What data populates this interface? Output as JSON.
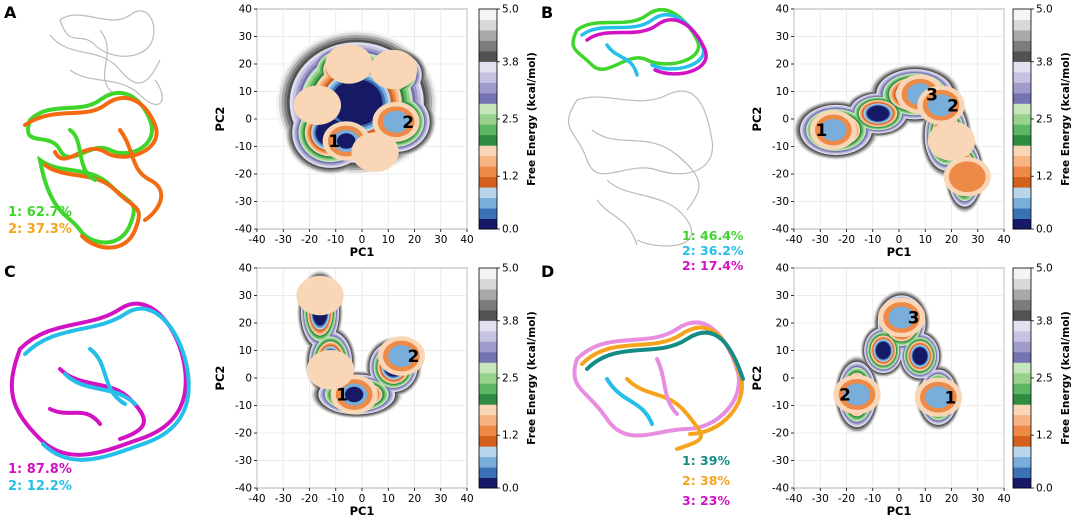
{
  "colors": {
    "colorbar": [
      "#161a66",
      "#3a72b5",
      "#79aedb",
      "#b7d6ec",
      "#d4601d",
      "#ee8a47",
      "#f7b381",
      "#f9d6b6",
      "#2f8b41",
      "#5cb664",
      "#98d28d",
      "#c5e7bb",
      "#7573b2",
      "#9f9ccc",
      "#c5c2e2",
      "#e1e0f0",
      "#525252",
      "#7c7c7c",
      "#a9a9a9",
      "#d8d8d8",
      "#f5f5f5"
    ],
    "protein_green": "#3ed62b",
    "protein_orange": "#f36a10",
    "protein_cyan": "#26bfe9",
    "protein_magenta": "#d313c3",
    "protein_teal": "#138c86",
    "protein_gold": "#f6a41d",
    "protein_pink": "#e88ee0"
  },
  "icons": [
    "protein-ribbon-structure"
  ],
  "colorbar": {
    "label": "Free Energy (kcal/mol)",
    "ticks": [
      "5.0",
      "3.8",
      "2.5",
      "1.2",
      "0.0"
    ],
    "range": [
      0,
      5.0
    ]
  },
  "panels": [
    {
      "letter": "A",
      "populations": [
        {
          "text": "1: 62.7%",
          "color": "#3ed62b"
        },
        {
          "text": "2: 37.3%",
          "color": "#f6a41d"
        }
      ],
      "minima_labels": [
        "1",
        "2"
      ]
    },
    {
      "letter": "B",
      "populations": [
        {
          "text": "1: 46.4%",
          "color": "#3ed62b"
        },
        {
          "text": "2: 36.2%",
          "color": "#26bfe9"
        },
        {
          "text": "2: 17.4%",
          "color": "#d313c3"
        }
      ],
      "minima_labels": [
        "1",
        "3",
        "2"
      ]
    },
    {
      "letter": "C",
      "populations": [
        {
          "text": "1: 87.8%",
          "color": "#d313c3"
        },
        {
          "text": "2: 12.2%",
          "color": "#26bfe9"
        }
      ],
      "minima_labels": [
        "1",
        "2"
      ]
    },
    {
      "letter": "D",
      "populations": [
        {
          "text": "1: 39%",
          "color": "#138c86"
        },
        {
          "text": "2: 38%",
          "color": "#f6a41d"
        },
        {
          "text": "3: 23%",
          "color": "#d313c3"
        }
      ],
      "minima_labels": [
        "3",
        "2",
        "1"
      ]
    }
  ],
  "chart_data": [
    {
      "type": "heatmap",
      "panel": "A",
      "xlabel": "PC1",
      "ylabel": "PC2",
      "xlim": [
        -40,
        40
      ],
      "ylim": [
        -40,
        40
      ],
      "xticks": [
        "-40",
        "-30",
        "-20",
        "-10",
        "0",
        "10",
        "20",
        "30",
        "40"
      ],
      "yticks": [
        "40",
        "30",
        "20",
        "10",
        "0",
        "-10",
        "-20",
        "-30",
        "-40"
      ],
      "grid": true,
      "zlabel": "Free Energy (kcal/mol)",
      "zlim": [
        0,
        5.0
      ],
      "minima": [
        {
          "label": "1",
          "pc1": -6,
          "pc2": -8,
          "free_energy": 0.0
        },
        {
          "label": "2",
          "pc1": 13,
          "pc2": -1,
          "free_energy": 0.3
        }
      ],
      "basins": [
        {
          "pc1": -17,
          "pc2": 5,
          "free_energy": 1.6
        },
        {
          "pc1": -5,
          "pc2": 20,
          "free_energy": 1.4
        },
        {
          "pc1": 12,
          "pc2": 18,
          "free_energy": 1.5
        },
        {
          "pc1": 5,
          "pc2": -12,
          "free_energy": 1.8
        }
      ]
    },
    {
      "type": "heatmap",
      "panel": "B",
      "xlabel": "PC1",
      "ylabel": "PC2",
      "xlim": [
        -40,
        40
      ],
      "ylim": [
        -40,
        40
      ],
      "xticks": [
        "-40",
        "-30",
        "-20",
        "-10",
        "0",
        "10",
        "20",
        "30",
        "40"
      ],
      "yticks": [
        "40",
        "30",
        "20",
        "10",
        "0",
        "-10",
        "-20",
        "-30",
        "-40"
      ],
      "grid": true,
      "zlabel": "Free Energy (kcal/mol)",
      "zlim": [
        0,
        5.0
      ],
      "minima": [
        {
          "label": "1",
          "pc1": -25,
          "pc2": -4,
          "free_energy": 0.6
        },
        {
          "label": "3",
          "pc1": 8,
          "pc2": 9,
          "free_energy": 0.4
        },
        {
          "label": "2",
          "pc1": 16,
          "pc2": 5,
          "free_energy": 0.5
        }
      ],
      "basins": [
        {
          "pc1": 20,
          "pc2": -8,
          "free_energy": 1.5
        },
        {
          "pc1": 26,
          "pc2": -21,
          "free_energy": 1.1
        }
      ]
    },
    {
      "type": "heatmap",
      "panel": "C",
      "xlabel": "PC1",
      "ylabel": "PC2",
      "xlim": [
        -40,
        40
      ],
      "ylim": [
        -40,
        40
      ],
      "xticks": [
        "-40",
        "-30",
        "-20",
        "-10",
        "0",
        "10",
        "20",
        "30",
        "40"
      ],
      "yticks": [
        "40",
        "30",
        "20",
        "10",
        "0",
        "-10",
        "-20",
        "-30",
        "-40"
      ],
      "grid": true,
      "zlabel": "Free Energy (kcal/mol)",
      "zlim": [
        0,
        5.0
      ],
      "minima": [
        {
          "label": "1",
          "pc1": -3,
          "pc2": -6,
          "free_energy": 0.0
        },
        {
          "label": "2",
          "pc1": 15,
          "pc2": 8,
          "free_energy": 0.6
        }
      ],
      "basins": [
        {
          "pc1": -16,
          "pc2": 30,
          "free_energy": 1.8
        },
        {
          "pc1": -15,
          "pc2": 17,
          "free_energy": 1.9
        },
        {
          "pc1": -12,
          "pc2": 3,
          "free_energy": 1.4
        }
      ]
    },
    {
      "type": "heatmap",
      "panel": "D",
      "xlabel": "PC1",
      "ylabel": "PC2",
      "xlim": [
        -40,
        40
      ],
      "ylim": [
        -40,
        40
      ],
      "xticks": [
        "-40",
        "-30",
        "-20",
        "-10",
        "0",
        "10",
        "20",
        "30",
        "40"
      ],
      "yticks": [
        "40",
        "30",
        "20",
        "10",
        "0",
        "-10",
        "-20",
        "-30",
        "-40"
      ],
      "grid": true,
      "zlabel": "Free Energy (kcal/mol)",
      "zlim": [
        0,
        5.0
      ],
      "minima": [
        {
          "label": "3",
          "pc1": 1,
          "pc2": 22,
          "free_energy": 0.4
        },
        {
          "label": "2",
          "pc1": -16,
          "pc2": -6,
          "free_energy": 0.6
        },
        {
          "label": "1",
          "pc1": 15,
          "pc2": -7,
          "free_energy": 0.5
        }
      ],
      "basins": []
    }
  ]
}
